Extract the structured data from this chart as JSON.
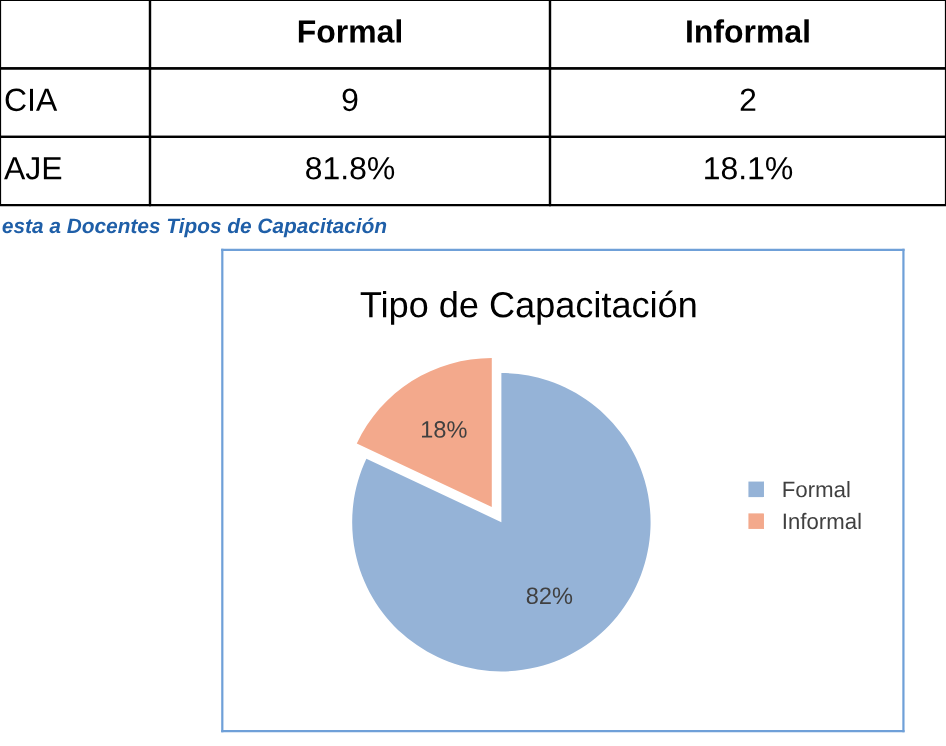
{
  "chart_data": [
    {
      "type": "other",
      "annotations": [
        "Formal",
        "Informal",
        "CIA",
        "9",
        "2",
        "AJE",
        "81.8%",
        "18.1%"
      ]
    },
    {
      "type": "pie",
      "subtitle": "esta a Docentes Tipos de Capacitación",
      "title": "Tipo de Capacitación",
      "categories": [
        "Formal",
        "Informal"
      ],
      "values": [
        82,
        18
      ],
      "colors": [
        "#95b3d7",
        "#f3a98c"
      ],
      "value_labels": [
        "82%",
        "18%"
      ],
      "legend": "right"
    }
  ]
}
